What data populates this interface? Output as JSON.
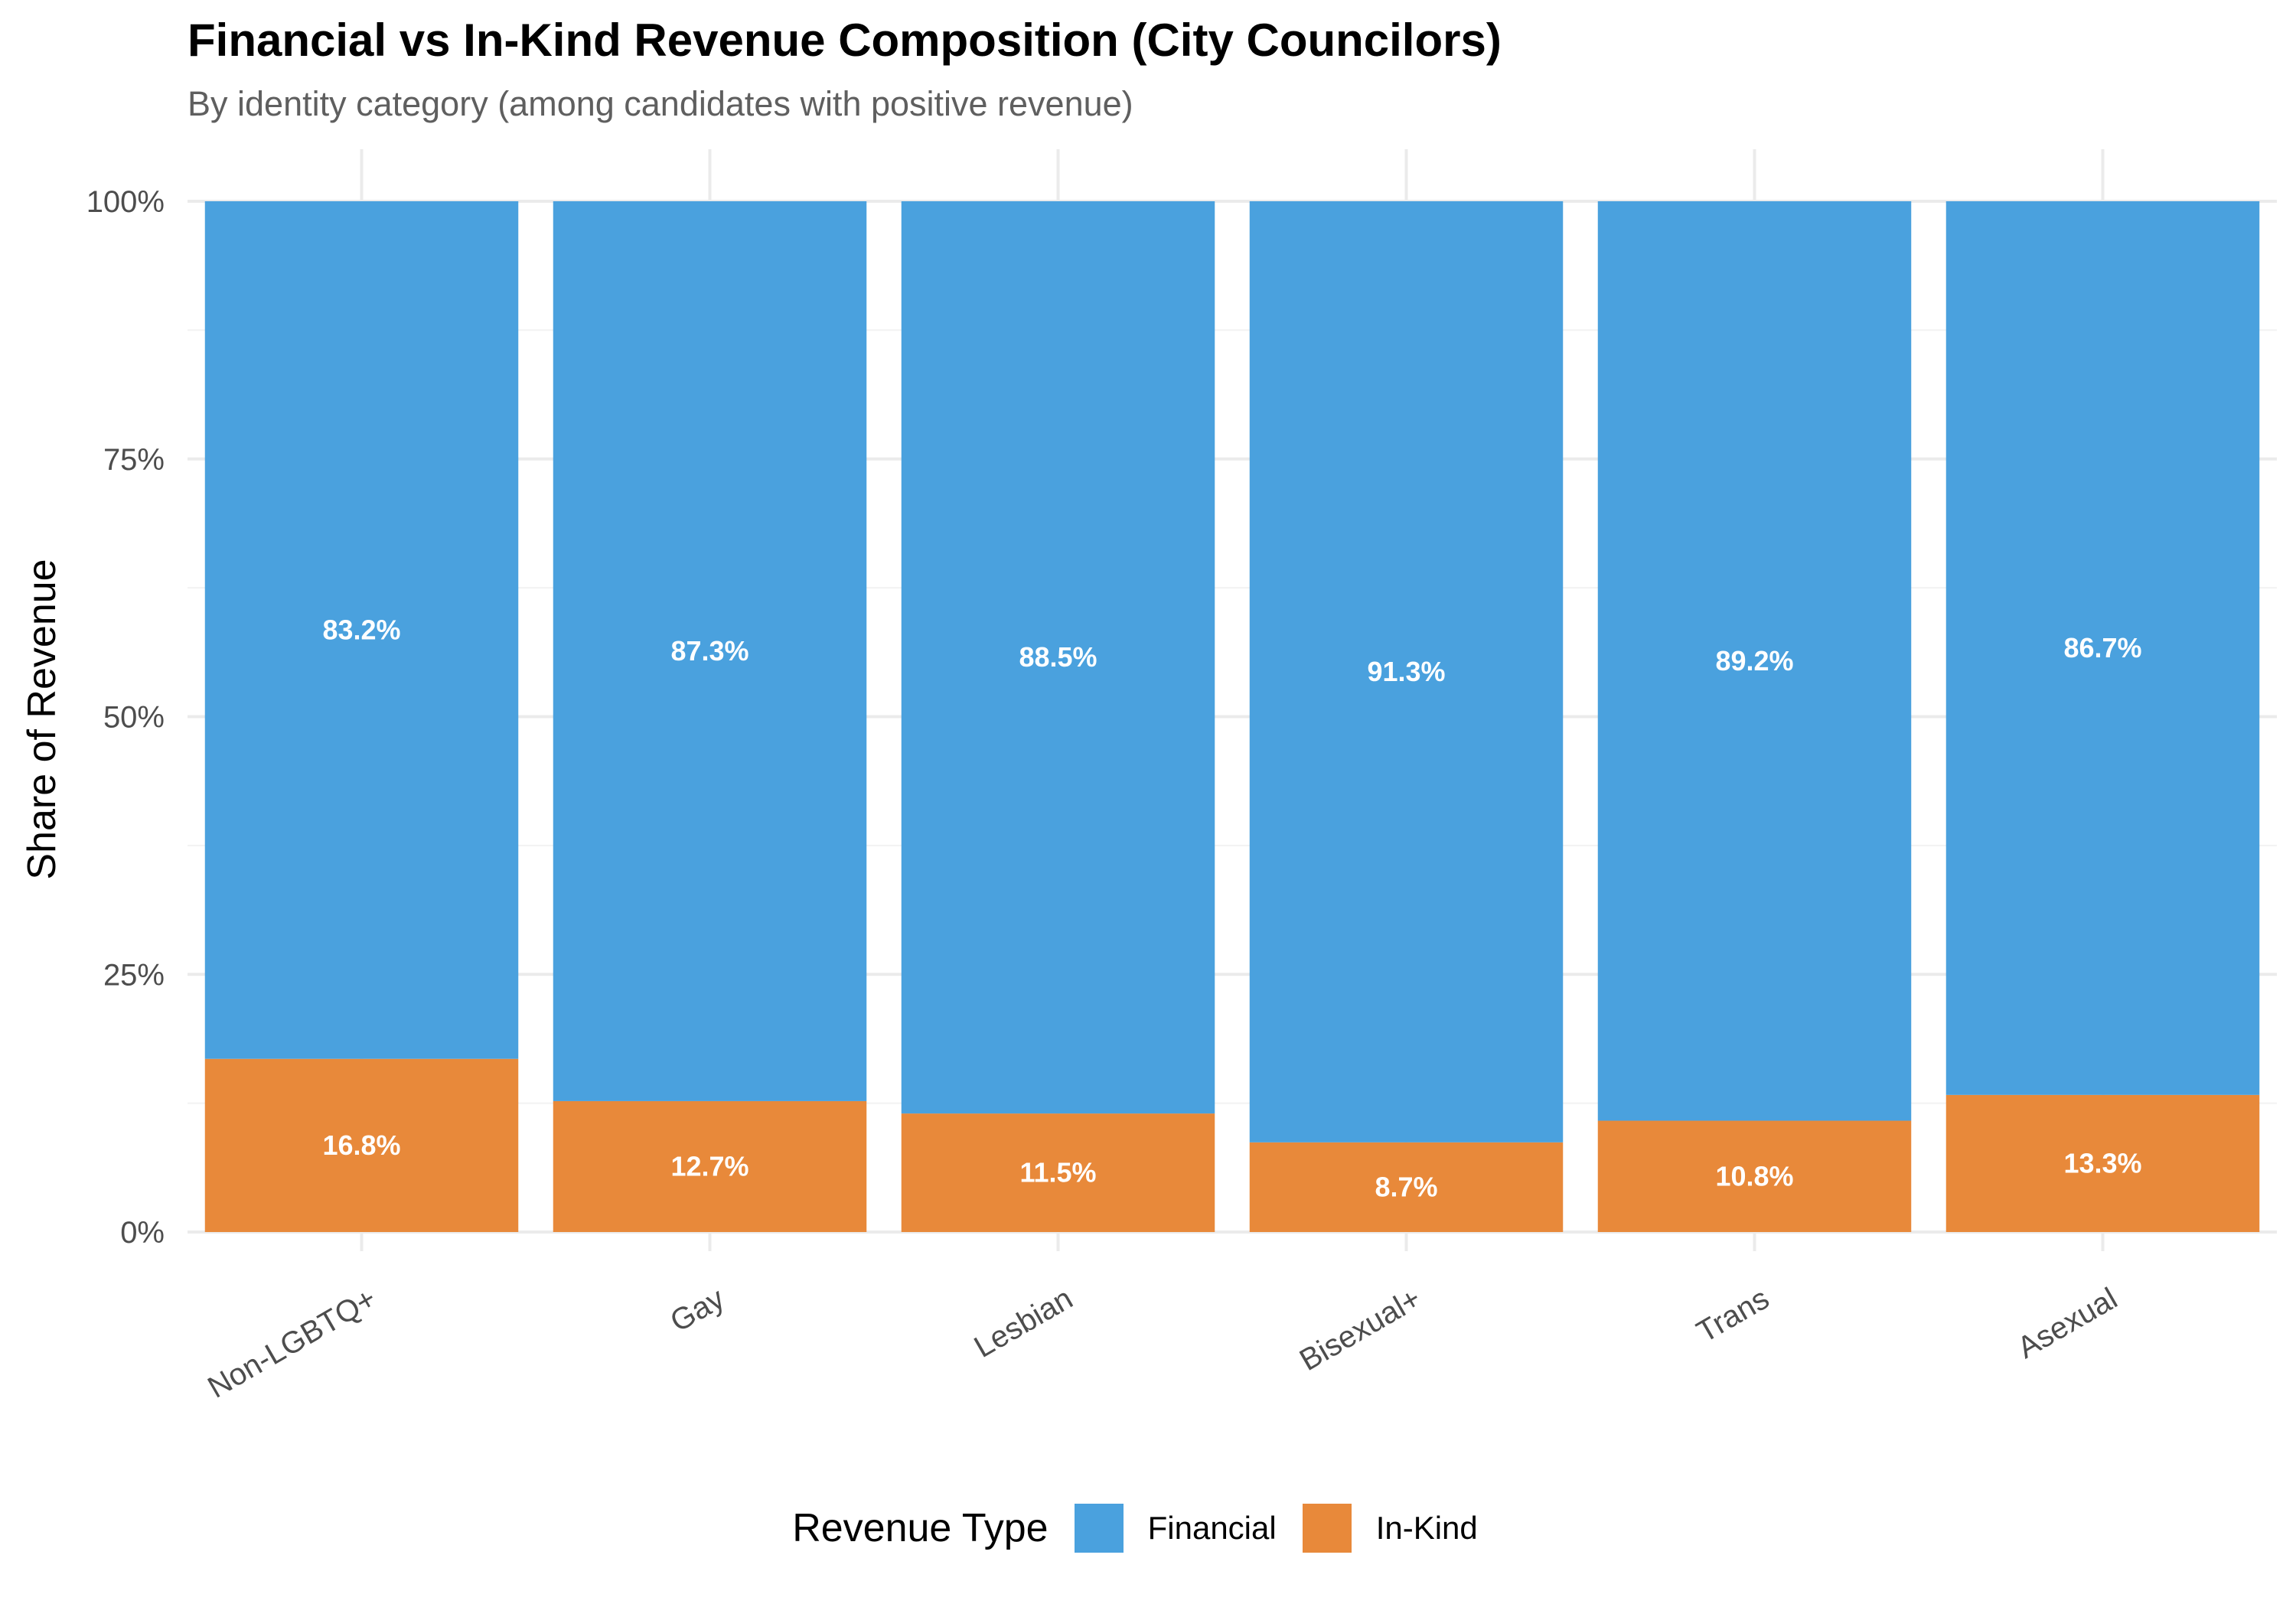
{
  "chart_data": {
    "type": "bar",
    "stacked": true,
    "title": "Financial vs In-Kind Revenue Composition (City Councilors)",
    "subtitle": "By identity category (among candidates with positive revenue)",
    "xlabel": "",
    "ylabel": "Share of Revenue",
    "ylim": [
      0,
      1
    ],
    "yticks": [
      {
        "value": 0,
        "label": "0%"
      },
      {
        "value": 0.25,
        "label": "25%"
      },
      {
        "value": 0.5,
        "label": "50%"
      },
      {
        "value": 0.75,
        "label": "75%"
      },
      {
        "value": 1,
        "label": "100%"
      }
    ],
    "categories": [
      "Non-LGBTQ+",
      "Gay",
      "Lesbian",
      "Bisexual+",
      "Trans",
      "Asexual"
    ],
    "series": [
      {
        "name": "In-Kind",
        "color": "#E8893A",
        "values": [
          0.168,
          0.127,
          0.115,
          0.087,
          0.108,
          0.133
        ],
        "labels": [
          "16.8%",
          "12.7%",
          "11.5%",
          "8.7%",
          "10.8%",
          "13.3%"
        ]
      },
      {
        "name": "Financial",
        "color": "#4AA1DE",
        "values": [
          0.832,
          0.873,
          0.885,
          0.913,
          0.892,
          0.867
        ],
        "labels": [
          "83.2%",
          "87.3%",
          "88.5%",
          "91.3%",
          "89.2%",
          "86.7%"
        ]
      }
    ],
    "legend": {
      "title": "Revenue Type",
      "position": "bottom",
      "order": [
        "Financial",
        "In-Kind"
      ]
    },
    "grid": true
  }
}
